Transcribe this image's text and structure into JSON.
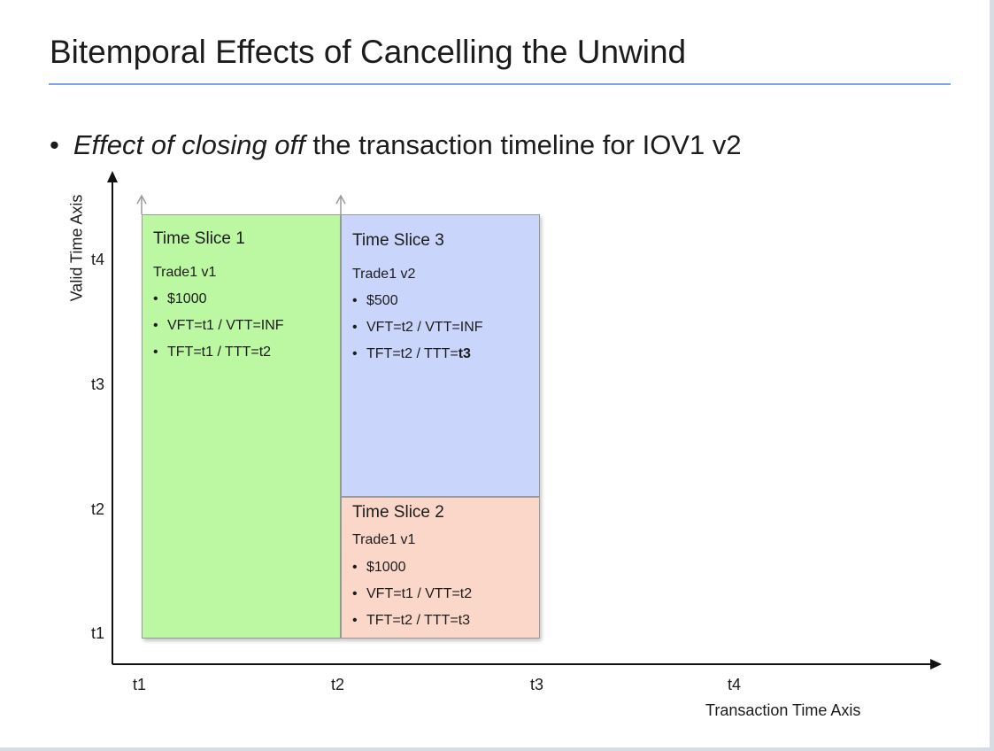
{
  "title": "Bitemporal Effects of Cancelling the Unwind",
  "bullet": {
    "emphasis": "Effect of closing off",
    "rest": " the transaction timeline for IOV1 v2"
  },
  "y_axis": {
    "label": "Valid Time Axis",
    "ticks": [
      "t4",
      "t3",
      "t2",
      "t1"
    ]
  },
  "x_axis": {
    "label": "Transaction Time Axis",
    "ticks": [
      "t1",
      "t2",
      "t3",
      "t4"
    ]
  },
  "slices": [
    {
      "title": "Time Slice 1",
      "trade": "Trade1 v1",
      "lines": [
        "$1000",
        "VFT=t1 / VTT=INF",
        "TFT=t1 / TTT=t2"
      ],
      "color": "#bcf7a1"
    },
    {
      "title": "Time Slice 3",
      "trade": "Trade1 v2",
      "lines": [
        "$500",
        "VFT=t2 / VTT=INF"
      ],
      "last_line_prefix": "TFT=t2 / TTT=",
      "last_line_bold": "t3",
      "color": "#cad5fb"
    },
    {
      "title": "Time Slice 2",
      "trade": "Trade1 v1",
      "lines": [
        "$1000",
        "VFT=t1 / VTT=t2",
        "TFT=t2 / TTT=t3"
      ],
      "color": "#fbd7c9"
    }
  ]
}
